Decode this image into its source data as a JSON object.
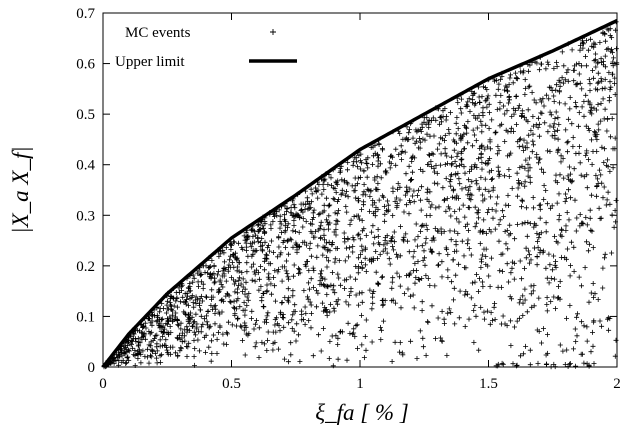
{
  "chart_data": {
    "type": "scatter",
    "title": "",
    "xlabel": "ξ_fa [ % ]",
    "ylabel": "|X_a X_f|",
    "xlim": [
      0,
      2
    ],
    "ylim": [
      0,
      0.7
    ],
    "xticks": [
      "0",
      "0.5",
      "1",
      "1.5",
      "2"
    ],
    "yticks": [
      "0",
      "0.1",
      "0.2",
      "0.3",
      "0.4",
      "0.5",
      "0.6",
      "0.7"
    ],
    "grid": false,
    "legend_position": "top-left",
    "series": [
      {
        "name": "MC events",
        "kind": "scatter",
        "marker": "+",
        "color": "#000000",
        "n_points": 2500,
        "envelope": "0 <= y <= upper limit",
        "sample_points": [
          [
            0.1,
            0.05
          ],
          [
            0.3,
            0.15
          ],
          [
            0.5,
            0.22
          ],
          [
            0.8,
            0.3
          ],
          [
            1.0,
            0.38
          ],
          [
            1.2,
            0.28
          ],
          [
            1.5,
            0.45
          ],
          [
            1.8,
            0.55
          ],
          [
            1.95,
            0.65
          ],
          [
            1.98,
            0.005
          ]
        ]
      },
      {
        "name": "Upper limit",
        "kind": "line",
        "color": "#000000",
        "points": [
          [
            0.0,
            0.0
          ],
          [
            0.1,
            0.065
          ],
          [
            0.25,
            0.145
          ],
          [
            0.5,
            0.255
          ],
          [
            0.75,
            0.34
          ],
          [
            1.0,
            0.43
          ],
          [
            1.25,
            0.5
          ],
          [
            1.5,
            0.57
          ],
          [
            1.75,
            0.625
          ],
          [
            2.0,
            0.685
          ]
        ]
      }
    ]
  }
}
